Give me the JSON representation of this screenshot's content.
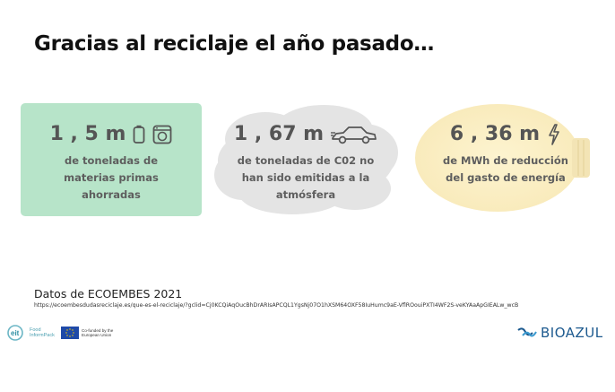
{
  "slide": {
    "title": "Gracias al reciclaje el año pasado…"
  },
  "cards": [
    {
      "value": "1 , 5 m",
      "desc_lines": [
        "de toneladas de",
        "materias primas",
        "ahorradas"
      ],
      "icons": [
        "battery-icon",
        "washing-machine-icon"
      ],
      "bg_color": "#b7e4c9"
    },
    {
      "value": "1 , 67 m",
      "desc_lines": [
        "de toneladas de C02 no",
        "han sido emitidas a la",
        "atmósfera"
      ],
      "icons": [
        "car-icon"
      ],
      "bg_shape": "cloud"
    },
    {
      "value": "6 , 36 m",
      "desc_lines": [
        "de MWh de reducción",
        "del gasto de energía"
      ],
      "icons": [
        "lightning-icon"
      ],
      "bg_shape": "light-bulb"
    }
  ],
  "source": {
    "label": "Datos de ECOEMBES 2021",
    "url": "https://ecoembesdudasreciclaje.es/que-es-el-reciclaje/?gclid=Cj0KCQiAqOucBhDrARIsAPCQL1YgsNj07O1hXSM64OXF58IuHumc9aE-VflROouiPXTI4WF2S-veKYAaApGIEALw_wcB"
  },
  "logos": {
    "food": {
      "mark": "eit",
      "line1": "Food",
      "line2": "InformPack"
    },
    "eu": {
      "line1": "Co-funded by the",
      "line2": "European Union"
    },
    "bioazul": {
      "name": "BIOAZUL"
    }
  },
  "colors": {
    "card1_bg": "#b7e4c9",
    "cloud": "#e3e3e3",
    "bulb": "#fbf0c8",
    "bioazul": "#1d5a8f"
  }
}
